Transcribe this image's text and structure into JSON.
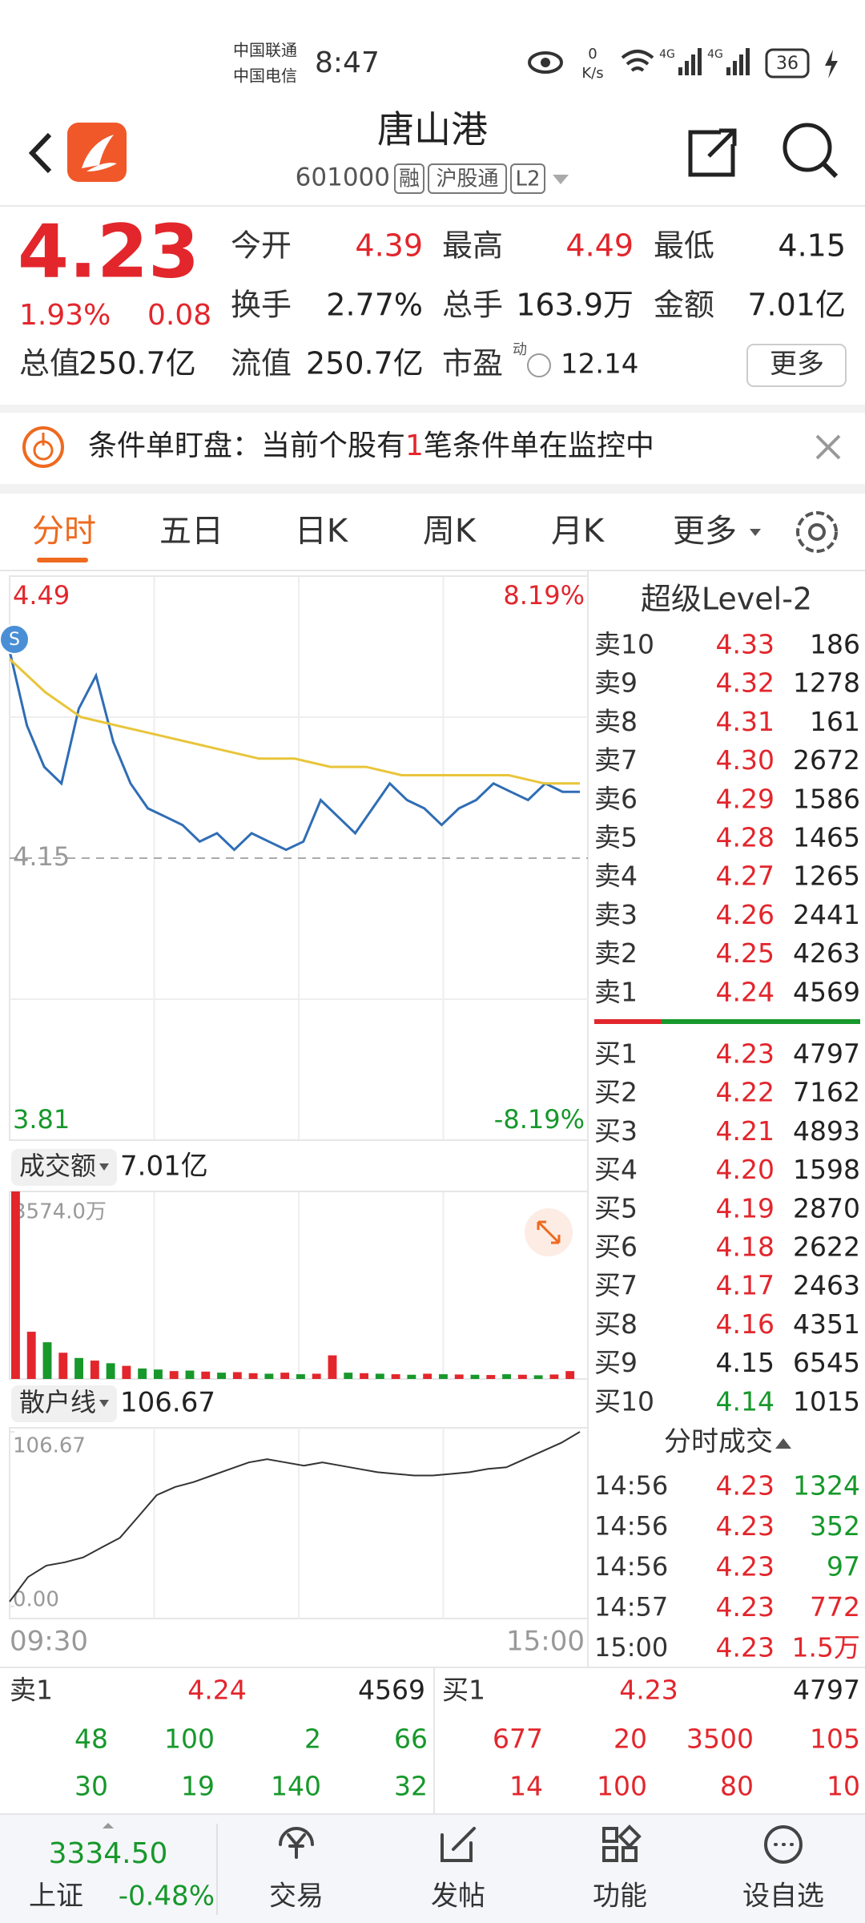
{
  "status_bar": {
    "carrier_1": "中国联通",
    "carrier_2": "中国电信",
    "time": "8:47",
    "net_speed": "0",
    "net_unit": "K/s",
    "signal_1": "4G",
    "signal_2": "4G",
    "battery": "36"
  },
  "header": {
    "title": "唐山港",
    "code": "601000",
    "tags": [
      "融",
      "沪股通",
      "L2"
    ]
  },
  "quote": {
    "price": "4.23",
    "change_pct": "1.93%",
    "change": "0.08",
    "fields": [
      [
        {
          "label": "今开",
          "value": "4.39",
          "color": "#e2262c"
        },
        {
          "label": "最高",
          "value": "4.49",
          "color": "#e2262c"
        },
        {
          "label": "最低",
          "value": "4.15",
          "color": "#222222"
        }
      ],
      [
        {
          "label": "换手",
          "value": "2.77%",
          "color": "#222222"
        },
        {
          "label": "总手",
          "value": "163.9万",
          "color": "#222222"
        },
        {
          "label": "金额",
          "value": "7.01亿",
          "color": "#222222"
        }
      ]
    ],
    "total_value_label": "总值",
    "total_value": "250.7亿",
    "float_value_label": "流值",
    "float_value": "250.7亿",
    "pe_label": "市盈",
    "pe_superscript": "动",
    "pe": "12.14",
    "more_button": "更多"
  },
  "alert": {
    "prefix": "条件单盯盘：当前个股有",
    "count": "1",
    "suffix": "笔条件单在监控中"
  },
  "tabs": [
    "分时",
    "五日",
    "日K",
    "周K",
    "月K",
    "更多"
  ],
  "chart_data": [
    {
      "type": "line",
      "ylim": [
        3.81,
        4.49
      ],
      "yticks": [
        3.81,
        4.15,
        4.49
      ],
      "y2lim": [
        -8.19,
        8.19
      ],
      "y2ticks": [
        {
          "value": -8.19,
          "label": "-8.19%"
        },
        {
          "value": 8.19,
          "label": "8.19%"
        }
      ],
      "marker_label": "S",
      "series": [
        {
          "color": "#2f6db5",
          "values": [
            4.4,
            4.31,
            4.26,
            4.24,
            4.33,
            4.37,
            4.29,
            4.24,
            4.21,
            4.2,
            4.19,
            4.17,
            4.18,
            4.16,
            4.18,
            4.17,
            4.16,
            4.17,
            4.22,
            4.2,
            4.18,
            4.21,
            4.24,
            4.22,
            4.21,
            4.19,
            4.21,
            4.22,
            4.24,
            4.23,
            4.22,
            4.24,
            4.23,
            4.23
          ]
        },
        {
          "color": "#e8c53a",
          "values": [
            4.39,
            4.35,
            4.32,
            4.31,
            4.3,
            4.29,
            4.28,
            4.27,
            4.27,
            4.26,
            4.26,
            4.25,
            4.25,
            4.25,
            4.25,
            4.24,
            4.24
          ]
        }
      ]
    },
    {
      "type": "bar",
      "label": "成交额",
      "total": "7.01亿",
      "ylim": [
        0,
        3574.0
      ],
      "yticks": [
        {
          "value": 3574.0,
          "label": "3574.0万"
        }
      ],
      "values": [
        3574,
        900,
        700,
        500,
        400,
        350,
        300,
        250,
        200,
        180,
        150,
        160,
        140,
        120,
        130,
        110,
        100,
        120,
        90,
        100,
        450,
        120,
        110,
        100,
        90,
        80,
        100,
        90,
        85,
        80,
        75,
        90,
        80,
        70,
        85,
        150
      ],
      "colors": [
        "#e2262c",
        "#e2262c",
        "#17982b",
        "#e2262c",
        "#17982b",
        "#e2262c",
        "#17982b",
        "#e2262c",
        "#17982b",
        "#17982b",
        "#e2262c",
        "#17982b",
        "#e2262c",
        "#17982b",
        "#e2262c",
        "#e2262c",
        "#17982b",
        "#e2262c",
        "#17982b",
        "#e2262c",
        "#e2262c",
        "#17982b",
        "#e2262c",
        "#17982b",
        "#e2262c",
        "#17982b",
        "#e2262c",
        "#17982b",
        "#e2262c",
        "#17982b",
        "#e2262c",
        "#17982b",
        "#e2262c",
        "#17982b",
        "#e2262c",
        "#e2262c"
      ]
    },
    {
      "type": "line",
      "label": "散户线",
      "current": "106.67",
      "ylim": [
        0,
        106.67
      ],
      "yticks": [
        {
          "value": 0,
          "label": "0.00"
        },
        106.67
      ],
      "x_labels": [
        "09:30",
        "15:00"
      ],
      "series": [
        {
          "color": "#333333",
          "values": [
            3,
            18,
            25,
            27,
            30,
            36,
            42,
            55,
            68,
            73,
            76,
            80,
            84,
            88,
            90,
            88,
            86,
            88,
            86,
            84,
            82,
            81,
            80,
            80,
            81,
            82,
            84,
            85,
            90,
            95,
            100,
            106.67
          ]
        }
      ]
    }
  ],
  "level2": {
    "title": "超级Level-2",
    "asks": [
      {
        "label": "卖10",
        "price": "4.33",
        "volume": "186",
        "color": "#e2262c"
      },
      {
        "label": "卖9",
        "price": "4.32",
        "volume": "1278",
        "color": "#e2262c"
      },
      {
        "label": "卖8",
        "price": "4.31",
        "volume": "161",
        "color": "#e2262c"
      },
      {
        "label": "卖7",
        "price": "4.30",
        "volume": "2672",
        "color": "#e2262c"
      },
      {
        "label": "卖6",
        "price": "4.29",
        "volume": "1586",
        "color": "#e2262c"
      },
      {
        "label": "卖5",
        "price": "4.28",
        "volume": "1465",
        "color": "#e2262c"
      },
      {
        "label": "卖4",
        "price": "4.27",
        "volume": "1265",
        "color": "#e2262c"
      },
      {
        "label": "卖3",
        "price": "4.26",
        "volume": "2441",
        "color": "#e2262c"
      },
      {
        "label": "卖2",
        "price": "4.25",
        "volume": "4263",
        "color": "#e2262c"
      },
      {
        "label": "卖1",
        "price": "4.24",
        "volume": "4569",
        "color": "#e2262c"
      }
    ],
    "bids": [
      {
        "label": "买1",
        "price": "4.23",
        "volume": "4797",
        "color": "#e2262c"
      },
      {
        "label": "买2",
        "price": "4.22",
        "volume": "7162",
        "color": "#e2262c"
      },
      {
        "label": "买3",
        "price": "4.21",
        "volume": "4893",
        "color": "#e2262c"
      },
      {
        "label": "买4",
        "price": "4.20",
        "volume": "1598",
        "color": "#e2262c"
      },
      {
        "label": "买5",
        "price": "4.19",
        "volume": "2870",
        "color": "#e2262c"
      },
      {
        "label": "买6",
        "price": "4.18",
        "volume": "2622",
        "color": "#e2262c"
      },
      {
        "label": "买7",
        "price": "4.17",
        "volume": "2463",
        "color": "#e2262c"
      },
      {
        "label": "买8",
        "price": "4.16",
        "volume": "4351",
        "color": "#e2262c"
      },
      {
        "label": "买9",
        "price": "4.15",
        "volume": "6545",
        "color": "#222222"
      },
      {
        "label": "买10",
        "price": "4.14",
        "volume": "1015",
        "color": "#17982b"
      }
    ],
    "trades_title": "分时成交",
    "trades": [
      {
        "time": "14:56",
        "price": "4.23",
        "volume": "1324",
        "color": "#17982b"
      },
      {
        "time": "14:56",
        "price": "4.23",
        "volume": "352",
        "color": "#17982b"
      },
      {
        "time": "14:56",
        "price": "4.23",
        "volume": "97",
        "color": "#17982b"
      },
      {
        "time": "14:57",
        "price": "4.23",
        "volume": "772",
        "color": "#e2262c"
      },
      {
        "time": "15:00",
        "price": "4.23",
        "volume": "1.5万",
        "color": "#e2262c"
      }
    ]
  },
  "queue": {
    "ask": {
      "label": "卖1",
      "price": "4.24",
      "volume": "4569",
      "color": "#17982b",
      "orders": [
        [
          "48",
          "100",
          "2",
          "66"
        ],
        [
          "30",
          "19",
          "140",
          "32"
        ]
      ]
    },
    "bid": {
      "label": "买1",
      "price": "4.23",
      "volume": "4797",
      "color": "#e2262c",
      "orders": [
        [
          "677",
          "20",
          "3500",
          "105"
        ],
        [
          "14",
          "100",
          "80",
          "10"
        ]
      ]
    }
  },
  "bottom_nav": {
    "index_value": "3334.50",
    "index_name": "上证",
    "index_change": "-0.48%",
    "items": [
      "交易",
      "发帖",
      "功能",
      "设自选"
    ]
  }
}
